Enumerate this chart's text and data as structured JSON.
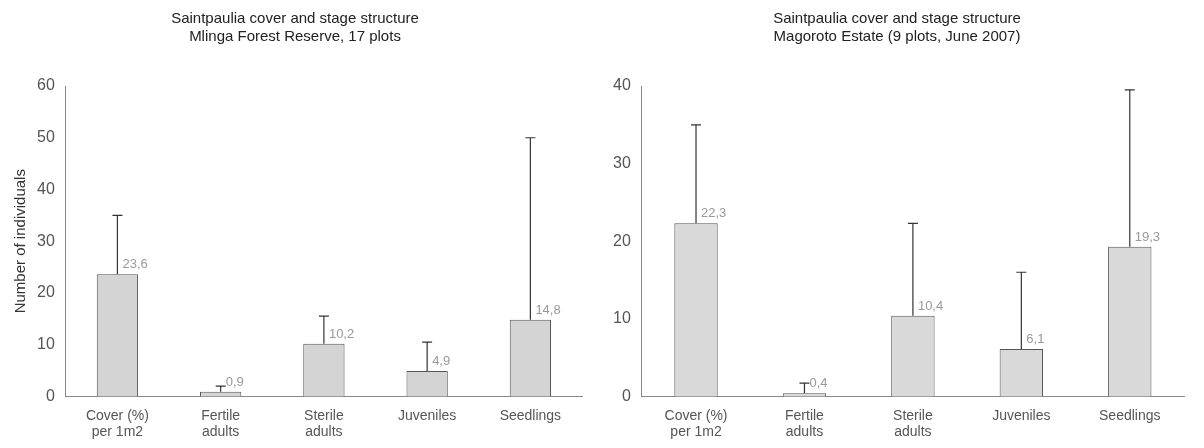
{
  "chart_data": [
    {
      "type": "bar",
      "title": [
        "Saintpaulia cover and stage structure",
        "Mlinga Forest Reserve, 17 plots"
      ],
      "ylabel": "Number of individuals",
      "categories": [
        "Cover (%) per 1m2",
        "Fertile adults",
        "Sterile adults",
        "Juveniles",
        "Seedlings"
      ],
      "values": [
        23.6,
        0.9,
        10.2,
        4.9,
        14.8
      ],
      "color": "#d4d4d4",
      "errors": [
        [
          23.6,
          35
        ],
        [
          0.9,
          2
        ],
        [
          10.2,
          15.5
        ],
        [
          4.9,
          10.5
        ],
        [
          14.8,
          50
        ]
      ],
      "value_labels": [
        "23,6",
        "0,9",
        "10,2",
        "4,9",
        "14,8"
      ],
      "ylim": [
        0,
        60
      ],
      "yticks": [
        0,
        10,
        20,
        30,
        40,
        50,
        60
      ],
      "grid": false,
      "legend": false
    },
    {
      "type": "bar",
      "title": [
        "Saintpaulia cover and stage structure",
        "Magoroto Estate (9 plots, June 2007)"
      ],
      "categories": [
        "Cover (%) per 1m2",
        "Fertile adults",
        "Sterile adults",
        "Juveniles",
        "Seedlings"
      ],
      "values": [
        22.3,
        0.4,
        10.4,
        6.1,
        19.3
      ],
      "color": "#d9d9d9",
      "errors": [
        [
          22.3,
          35
        ],
        [
          0.4,
          1.7
        ],
        [
          10.4,
          22.3
        ],
        [
          6.1,
          16
        ],
        [
          19.3,
          39.5
        ]
      ],
      "value_labels": [
        "22,3",
        "0,4",
        "10,4",
        "6,1",
        "19,3"
      ],
      "ylim": [
        0,
        40
      ],
      "yticks": [
        0,
        10,
        20,
        30,
        40
      ],
      "grid": false,
      "legend": false
    }
  ]
}
